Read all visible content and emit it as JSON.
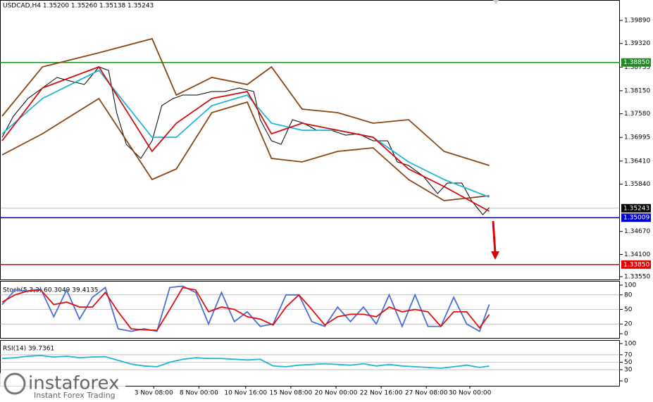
{
  "chart_data": [
    {
      "type": "line",
      "title": "USDCAD,H4  1.35200 1.35260 1.35138 1.35243",
      "xlim": [
        -1.3,
        383
      ],
      "ylim": [
        1.3348,
        1.40395
      ],
      "xticks": [
        {
          "value": 94,
          "label": "3 Nov 08:00"
        },
        {
          "value": 122,
          "label": "8 Nov 00:00"
        },
        {
          "value": 151,
          "label": "10 Nov 16:00"
        },
        {
          "value": 179,
          "label": "15 Nov 08:00"
        },
        {
          "value": 207,
          "label": "20 Nov 00:00"
        },
        {
          "value": 235,
          "label": "22 Nov 16:00"
        },
        {
          "value": 263,
          "label": "27 Nov 08:00"
        },
        {
          "value": 290,
          "label": "30 Nov 00:00"
        }
      ],
      "yticks": [
        {
          "value": 1.3989,
          "label": "1.39890"
        },
        {
          "value": 1.3932,
          "label": "1.39320"
        },
        {
          "value": 1.38735,
          "label": "1.38735"
        },
        {
          "value": 1.3815,
          "label": "1.38150"
        },
        {
          "value": 1.3758,
          "label": "1.37580"
        },
        {
          "value": 1.36995,
          "label": "1.36995"
        },
        {
          "value": 1.3641,
          "label": "1.36410"
        },
        {
          "value": 1.3584,
          "label": "1.35840"
        },
        {
          "value": 1.3467,
          "label": "1.34670"
        },
        {
          "value": 1.341,
          "label": "1.34100"
        },
        {
          "value": 1.3355,
          "label": "1.33550"
        }
      ],
      "levels": [
        {
          "value": 1.3885,
          "label": "1.38850",
          "color": "#1f8a1f"
        },
        {
          "value": 1.35243,
          "label": "1.35243",
          "color": "#000000"
        },
        {
          "value": 1.35009,
          "label": "1.35009",
          "color": "#0000cc"
        },
        {
          "value": 1.3385,
          "label": "1.33850",
          "color": "#e00000"
        }
      ],
      "series": [
        {
          "color": "#000000",
          "x": [
            0,
            7,
            16,
            25,
            34,
            42,
            51,
            60,
            66,
            71,
            77,
            86,
            93,
            99,
            106,
            112,
            121,
            130,
            138,
            147,
            156,
            160,
            167,
            173,
            180,
            187,
            195,
            204,
            213,
            221,
            230,
            239,
            245,
            252,
            261,
            270,
            276,
            285,
            291,
            298,
            302
          ],
          "values": [
            1.36998,
            1.37521,
            1.37956,
            1.38218,
            1.38479,
            1.38392,
            1.38305,
            1.3874,
            1.38653,
            1.37608,
            1.36824,
            1.36476,
            1.36911,
            1.37782,
            1.37956,
            1.38043,
            1.38043,
            1.38131,
            1.38131,
            1.38218,
            1.38131,
            1.37434,
            1.36911,
            1.36824,
            1.37434,
            1.37347,
            1.37173,
            1.37173,
            1.37051,
            1.37085,
            1.36911,
            1.36911,
            1.36389,
            1.36302,
            1.3604,
            1.35605,
            1.35866,
            1.35866,
            1.35431,
            1.35082,
            1.35256
          ]
        },
        {
          "color": "#8b4513",
          "x": [
            0,
            25,
            60,
            93,
            108,
            130,
            152,
            167,
            186,
            208,
            230,
            252,
            274,
            302
          ],
          "values": [
            1.37521,
            1.3874,
            1.39089,
            1.39437,
            1.38043,
            1.38479,
            1.38305,
            1.3874,
            1.37695,
            1.37608,
            1.37347,
            1.37434,
            1.3665,
            1.36302
          ]
        },
        {
          "color": "#8b4513",
          "x": [
            0,
            25,
            60,
            93,
            108,
            130,
            152,
            167,
            186,
            208,
            230,
            252,
            274,
            302
          ],
          "values": [
            1.36563,
            1.37085,
            1.37956,
            1.35953,
            1.36214,
            1.37608,
            1.37869,
            1.36476,
            1.36389,
            1.3665,
            1.36737,
            1.35953,
            1.35431,
            1.35553
          ]
        },
        {
          "color": "#22b4d8",
          "x": [
            0,
            25,
            60,
            93,
            108,
            130,
            152,
            167,
            186,
            208,
            230,
            252,
            274,
            302
          ],
          "values": [
            1.37085,
            1.37956,
            1.38653,
            1.36998,
            1.36998,
            1.37782,
            1.38043,
            1.37347,
            1.37173,
            1.37173,
            1.36998,
            1.36389,
            1.35953,
            1.35518
          ]
        },
        {
          "color": "#d01010",
          "x": [
            0,
            25,
            60,
            93,
            108,
            130,
            152,
            167,
            186,
            208,
            230,
            252,
            274,
            302
          ],
          "values": [
            1.36911,
            1.38218,
            1.3874,
            1.3665,
            1.37347,
            1.37956,
            1.38131,
            1.37085,
            1.37347,
            1.37173,
            1.36998,
            1.36214,
            1.35779,
            1.35169
          ]
        }
      ]
    },
    {
      "type": "line",
      "title": "Stoch(5,3,3) 60.3049 39.4135",
      "xlim": [
        -1.3,
        383
      ],
      "ylim": [
        0,
        100
      ],
      "yticks": [
        100,
        80,
        50,
        20,
        0
      ],
      "levels": [
        80,
        50,
        20
      ],
      "series": [
        {
          "color": "#4a6fd4",
          "x": [
            0,
            8,
            16,
            24,
            32,
            40,
            48,
            56,
            64,
            72,
            80,
            88,
            96,
            104,
            112,
            120,
            128,
            136,
            144,
            152,
            160,
            168,
            176,
            184,
            192,
            200,
            208,
            216,
            224,
            232,
            240,
            248,
            256,
            264,
            272,
            280,
            288,
            296,
            302
          ],
          "values": [
            60,
            90,
            88,
            92,
            35,
            90,
            30,
            75,
            95,
            10,
            5,
            10,
            5,
            95,
            98,
            85,
            20,
            85,
            25,
            45,
            15,
            20,
            80,
            80,
            25,
            15,
            55,
            25,
            55,
            20,
            80,
            15,
            80,
            15,
            15,
            75,
            20,
            5,
            60.3
          ]
        },
        {
          "color": "#e01010",
          "x": [
            0,
            8,
            16,
            24,
            32,
            40,
            48,
            56,
            64,
            72,
            80,
            88,
            96,
            104,
            112,
            120,
            128,
            136,
            144,
            152,
            160,
            168,
            176,
            184,
            192,
            200,
            208,
            216,
            224,
            232,
            240,
            248,
            256,
            264,
            272,
            280,
            288,
            296,
            302
          ],
          "values": [
            65,
            80,
            88,
            90,
            60,
            65,
            55,
            55,
            85,
            45,
            10,
            8,
            7,
            50,
            95,
            90,
            45,
            55,
            50,
            35,
            30,
            18,
            55,
            80,
            50,
            18,
            35,
            40,
            40,
            35,
            55,
            45,
            50,
            45,
            15,
            45,
            45,
            12,
            39.4
          ]
        }
      ]
    },
    {
      "type": "line",
      "title": "RSI(14) 39.7361",
      "xlim": [
        -1.3,
        383
      ],
      "ylim": [
        0,
        100
      ],
      "yticks": [
        100,
        70,
        50,
        30,
        0
      ],
      "levels": [
        70,
        50,
        30
      ],
      "series": [
        {
          "color": "#22b4d8",
          "x": [
            0,
            8,
            16,
            24,
            32,
            40,
            48,
            56,
            64,
            72,
            80,
            88,
            96,
            104,
            112,
            120,
            128,
            136,
            144,
            152,
            160,
            168,
            176,
            184,
            192,
            200,
            208,
            216,
            224,
            232,
            240,
            248,
            256,
            264,
            272,
            280,
            288,
            296,
            302
          ],
          "values": [
            60,
            62,
            66,
            68,
            64,
            66,
            62,
            64,
            65,
            55,
            45,
            40,
            38,
            50,
            58,
            62,
            60,
            60,
            58,
            56,
            58,
            40,
            38,
            42,
            44,
            46,
            44,
            42,
            46,
            40,
            44,
            40,
            38,
            36,
            34,
            38,
            42,
            36,
            39.7
          ]
        }
      ]
    }
  ],
  "branding": {
    "name": "instaforex",
    "tagline": "Instant Forex Trading"
  }
}
